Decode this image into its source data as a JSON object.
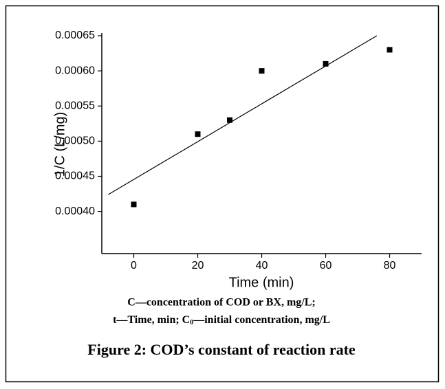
{
  "chart_data": {
    "type": "scatter",
    "ylabel": "1/C (L/mg)",
    "xlabel": "Time (min)",
    "x": [
      0,
      20,
      30,
      40,
      60,
      80
    ],
    "values": [
      0.00041,
      0.00051,
      0.00053,
      0.0006,
      0.00061,
      0.00063
    ],
    "color": "#000000",
    "fit_line": {
      "x": [
        -8,
        76
      ],
      "values": [
        0.000424,
        0.00065
      ]
    },
    "xlim": [
      -10,
      90
    ],
    "xticks": [
      0,
      20,
      40,
      60,
      80
    ],
    "ylim": [
      0.00034,
      0.00065
    ],
    "yticks": [
      {
        "value": 0.0004,
        "label": "0.00040"
      },
      0.00045,
      {
        "value": 0.0005,
        "label": "0.00050"
      },
      0.00055,
      {
        "value": 0.0006,
        "label": "0.00060"
      },
      0.00065
    ]
  },
  "caption": {
    "line1": "C—concentration of COD or BX, mg/L;",
    "line2_a": "t—Time, min; C",
    "line2_sub": "0",
    "line2_b": "—initial concentration, mg/L",
    "figure": "Figure 2: COD’s constant of reaction rate"
  }
}
